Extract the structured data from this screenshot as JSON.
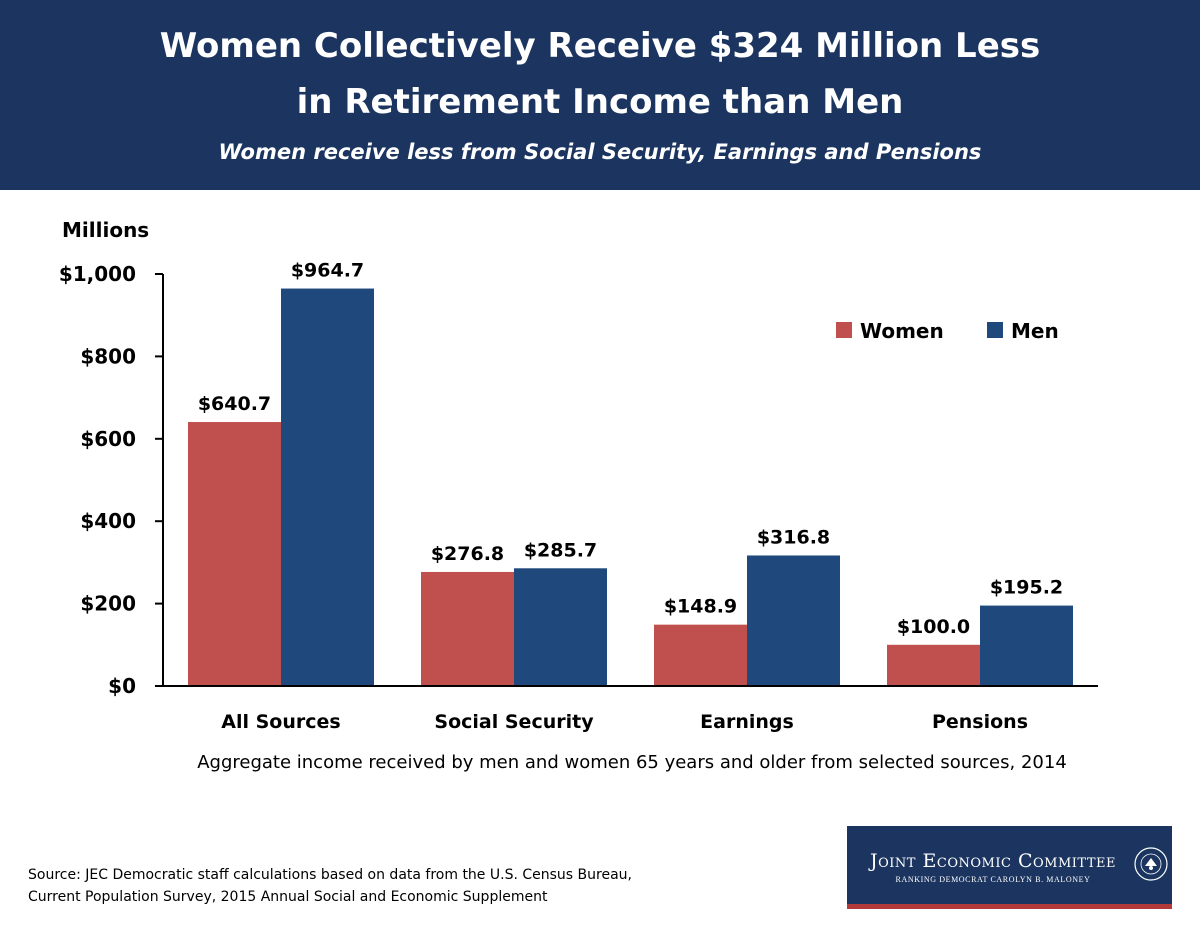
{
  "header": {
    "title_line1": "Women Collectively Receive $324 Million Less",
    "title_line2": "in Retirement Income than Men",
    "subtitle": "Women receive less from Social Security, Earnings and Pensions"
  },
  "chart_data": {
    "type": "bar",
    "title": "Women Collectively Receive $324 Million Less in Retirement Income than Men",
    "subtitle": "Women receive less from Social Security, Earnings and Pensions",
    "units_label": "Millions",
    "categories": [
      "All Sources",
      "Social Security",
      "Earnings",
      "Pensions"
    ],
    "series": [
      {
        "name": "Women",
        "color": "#c0504d",
        "values": [
          640.7,
          276.8,
          148.9,
          100.0
        ],
        "labels": [
          "$640.7",
          "$276.8",
          "$148.9",
          "$100.0"
        ]
      },
      {
        "name": "Men",
        "color": "#1f497d",
        "values": [
          964.7,
          285.7,
          316.8,
          195.2
        ],
        "labels": [
          "$964.7",
          "$285.7",
          "$316.8",
          "$195.2"
        ]
      }
    ],
    "yticks": [
      0,
      200,
      400,
      600,
      800,
      1000
    ],
    "ytick_labels": [
      "$0",
      "$200",
      "$400",
      "$600",
      "$800",
      "$1,000"
    ],
    "ylim": [
      0,
      1000
    ],
    "xlabel": "Aggregate income received by men and women 65 years and older from selected sources, 2014",
    "ylabel": "Millions",
    "legend_position": "top-right",
    "grid": false
  },
  "footer": {
    "source_line1": "Source: JEC Democratic staff calculations based on data from the U.S. Census Bureau,",
    "source_line2": "Current Population Survey, 2015 Annual Social and Economic Supplement",
    "logo_name": "Joint Economic Committee",
    "logo_sub": "RANKING DEMOCRAT CAROLYN B. MALONEY",
    "seal_text": "UNITED STATES CONGRESS"
  }
}
